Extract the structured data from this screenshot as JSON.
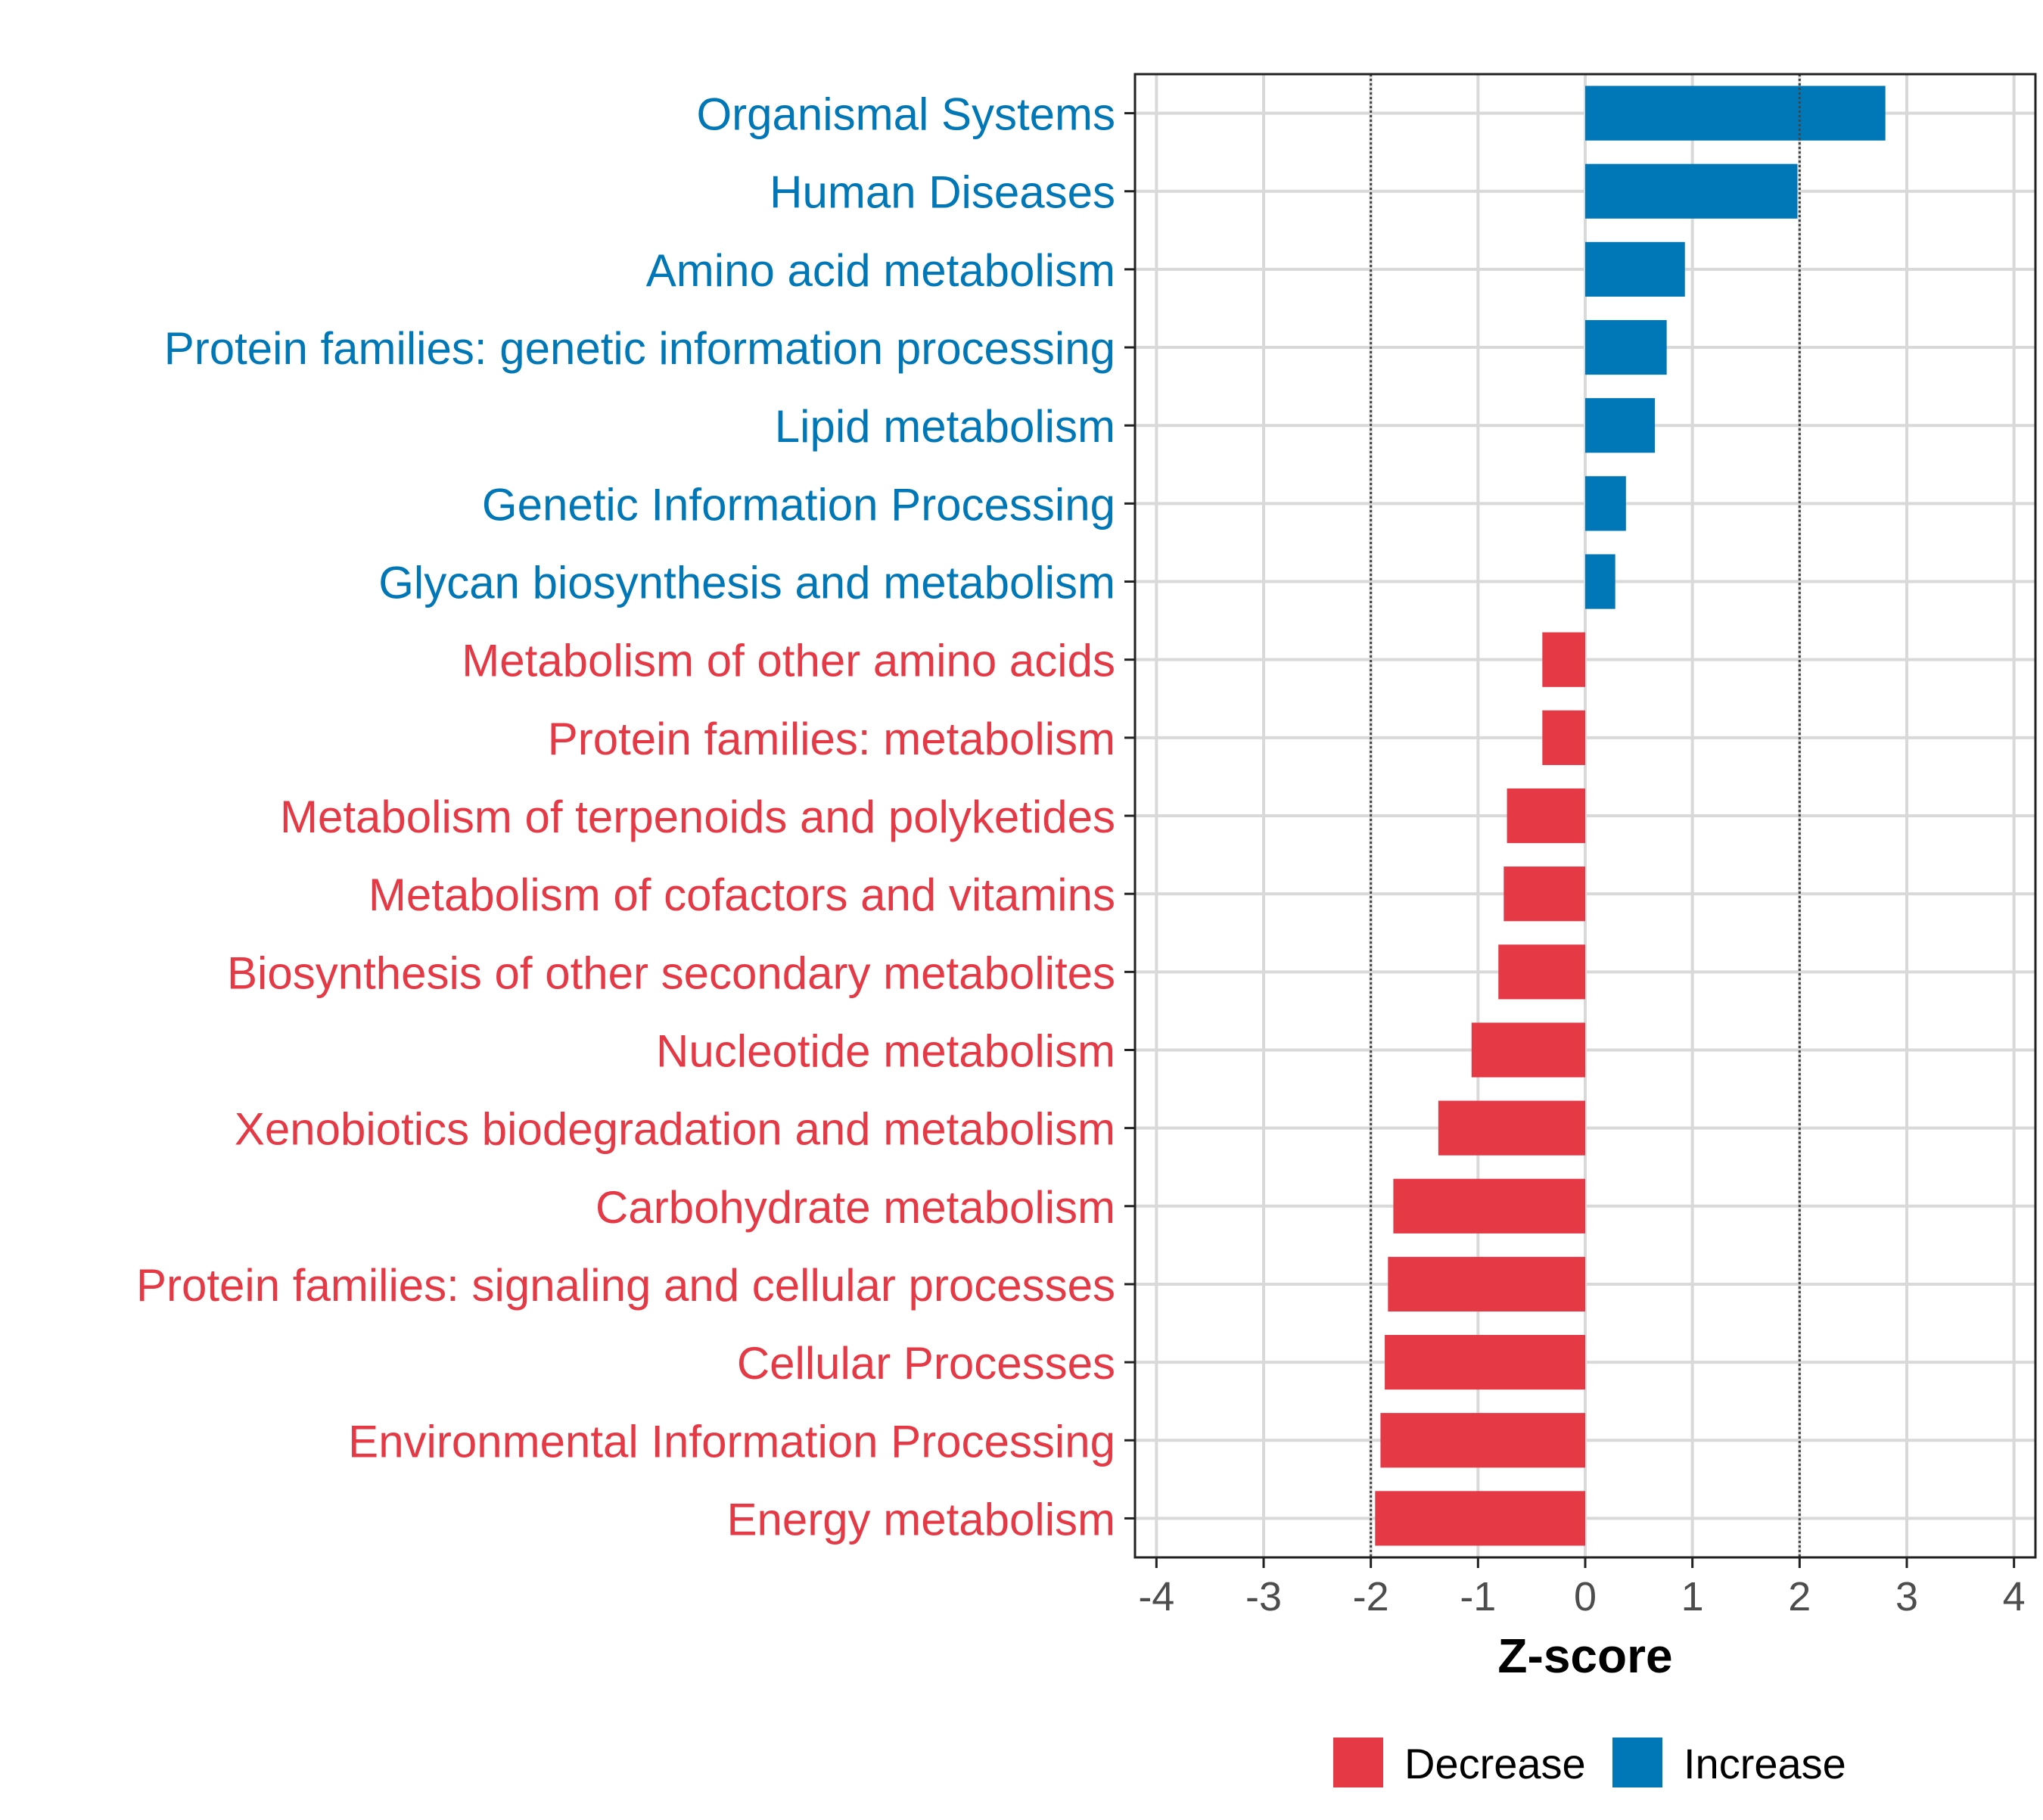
{
  "chart_data": {
    "type": "bar",
    "orientation": "horizontal",
    "xlabel": "Z-score",
    "xlim": [
      -4.2,
      4.2
    ],
    "xticks": [
      -4,
      -3,
      -2,
      -1,
      0,
      1,
      2,
      3,
      4
    ],
    "xtick_labels": [
      "-4",
      "-3",
      "-2",
      "-1",
      "0",
      "1",
      "2",
      "3",
      "4"
    ],
    "reference_lines": [
      -2,
      2
    ],
    "grid": true,
    "legend_position": "bottom",
    "series": [
      {
        "name": "Decrease",
        "color": "#e63946"
      },
      {
        "name": "Increase",
        "color": "#0077b6"
      }
    ],
    "categories": [
      "Organismal Systems",
      "Human Diseases",
      "Amino acid metabolism",
      "Protein families: genetic information processing",
      "Lipid metabolism",
      "Genetic Information Processing",
      "Glycan biosynthesis and metabolism",
      "Metabolism of other amino acids",
      "Protein families: metabolism",
      "Metabolism of terpenoids and polyketides",
      "Metabolism of cofactors and vitamins",
      "Biosynthesis of other secondary metabolites",
      "Nucleotide metabolism",
      "Xenobiotics biodegradation and metabolism",
      "Carbohydrate metabolism",
      "Protein families: signaling and cellular processes",
      "Cellular Processes",
      "Environmental Information Processing",
      "Energy metabolism"
    ],
    "values": [
      2.8,
      1.98,
      0.93,
      0.76,
      0.65,
      0.38,
      0.28,
      -0.4,
      -0.4,
      -0.73,
      -0.76,
      -0.81,
      -1.06,
      -1.37,
      -1.79,
      -1.84,
      -1.87,
      -1.91,
      -1.96
    ],
    "groups": [
      "Increase",
      "Increase",
      "Increase",
      "Increase",
      "Increase",
      "Increase",
      "Increase",
      "Decrease",
      "Decrease",
      "Decrease",
      "Decrease",
      "Decrease",
      "Decrease",
      "Decrease",
      "Decrease",
      "Decrease",
      "Decrease",
      "Decrease",
      "Decrease"
    ]
  }
}
